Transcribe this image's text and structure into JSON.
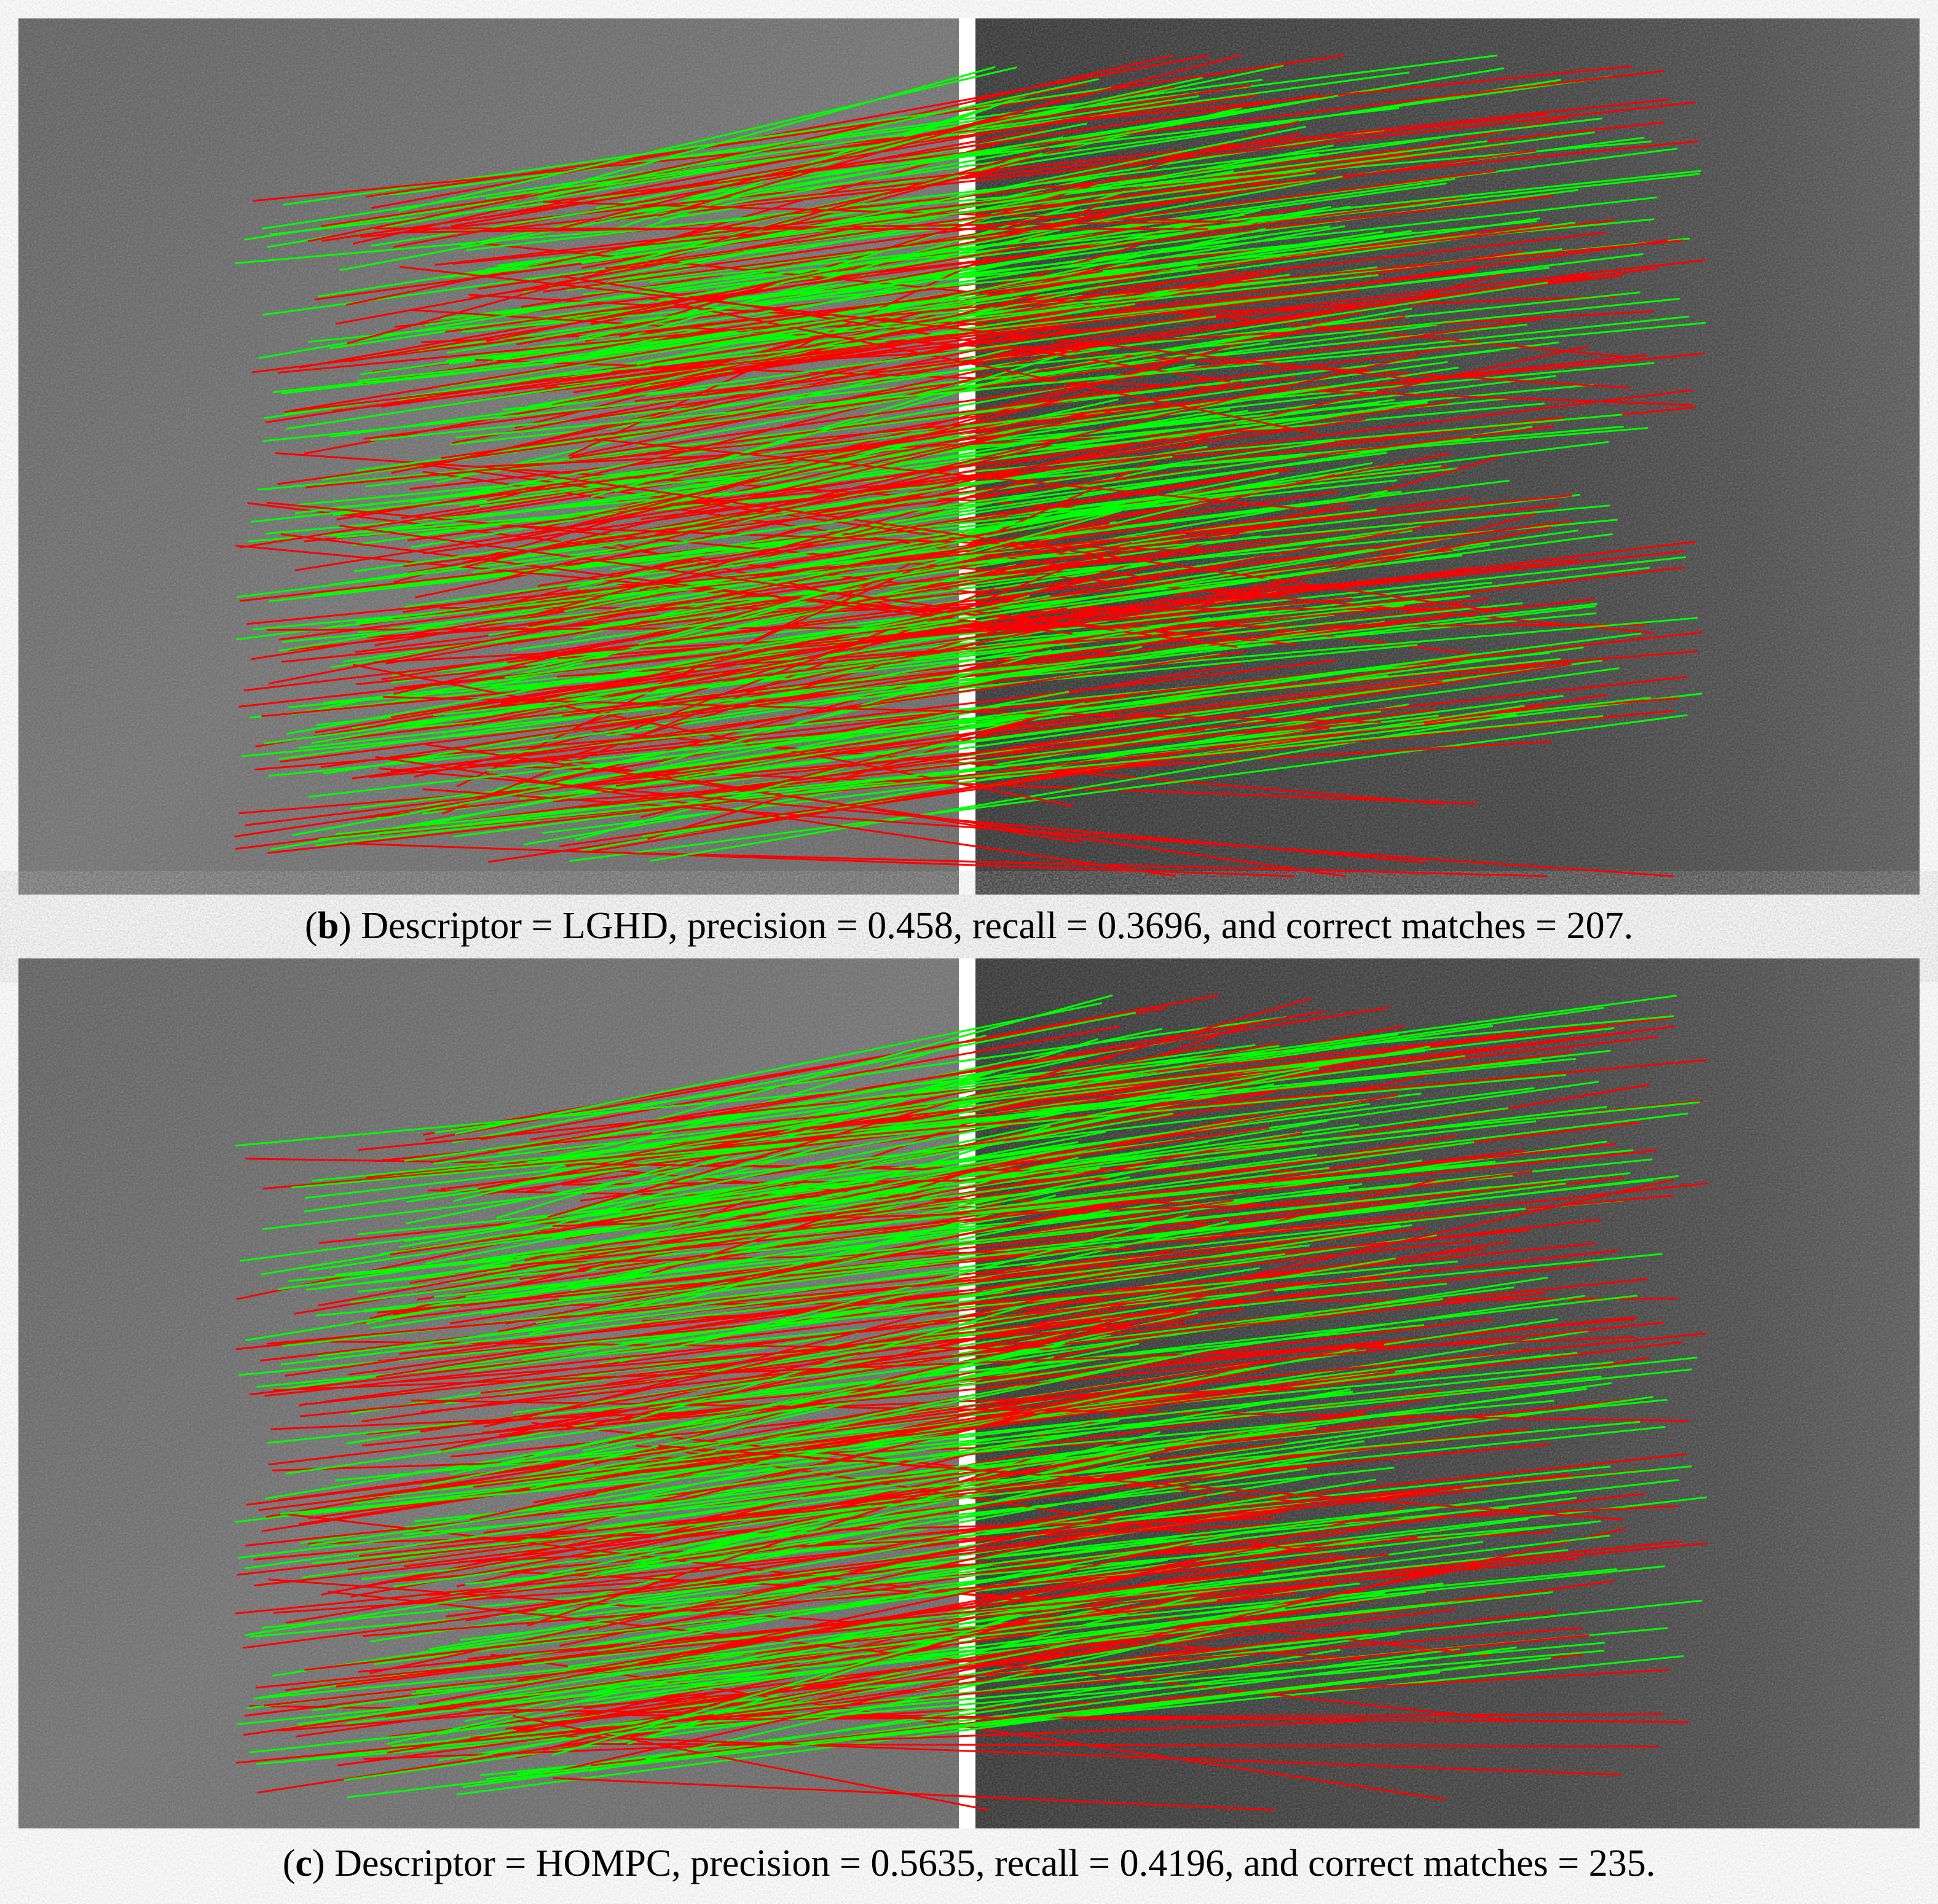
{
  "panels": [
    {
      "label_open": "(",
      "label": "b",
      "label_close": ")",
      "caption": "Descriptor = LGHD, precision = 0.458, recall = 0.3696, and correct matches = 207."
    },
    {
      "label_open": "(",
      "label": "c",
      "label_close": ")",
      "caption": "Descriptor = HOMPC, precision = 0.5635, recall = 0.4196, and correct matches = 235."
    }
  ]
}
